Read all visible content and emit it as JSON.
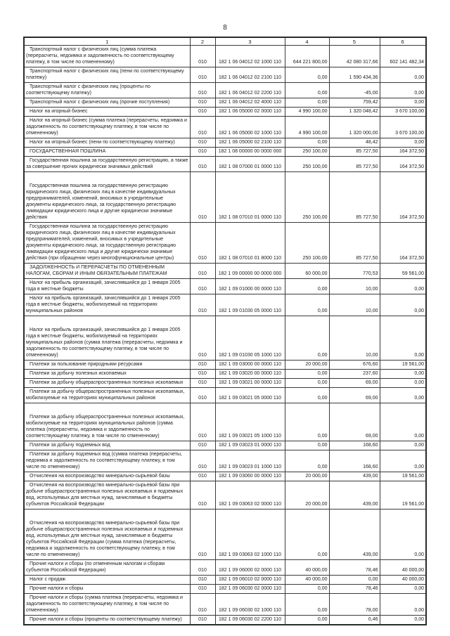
{
  "page": {
    "number": "8"
  },
  "table": {
    "headers": [
      "1",
      "2",
      "3",
      "4",
      "5",
      "6"
    ],
    "rows": [
      {
        "name": "Транспортный налог с физических лиц (сумма платежа (перерасчеты, недоимка и задолженность по соответствующему платежу, в том числе по отмененному)",
        "line": "010",
        "kbk": "182 1 06 04012 02 1000 110",
        "c4": "644 221 800,00",
        "c5": "42 080 317,66",
        "c6": "602 141 482,34"
      },
      {
        "name": "Транспортный налог с физических лиц (пени по соответствующему платежу)",
        "line": "010",
        "kbk": "182 1 06 04012 02 2100 110",
        "c4": "0,00",
        "c5": "1 590 434,36",
        "c6": "0,00"
      },
      {
        "name": "Транспортный налог с физических лиц (проценты по соответствующему платежу)",
        "line": "010",
        "kbk": "182 1 06 04012 02 2200 110",
        "c4": "0,00",
        "c5": "-45,00",
        "c6": "0,00"
      },
      {
        "name": "Транспортный налог с физических лиц (прочие поступления)",
        "line": "010",
        "kbk": "182 1 06 04012 02 4000 110",
        "c4": "0,00",
        "c5": "759,42",
        "c6": "0,00"
      },
      {
        "name": "Налог на игорный бизнес",
        "line": "010",
        "kbk": "182 1 06 05000 02 0000 110",
        "c4": "4 990 100,00",
        "c5": "1 320 048,42",
        "c6": "3 670 100,00"
      },
      {
        "name": "Налог на игорный бизнес (сумма платежа (перерасчеты, недоимка и задолженность по соответствующему платежу, в том числе по отмененному)",
        "line": "010",
        "kbk": "182 1 06 05000 02 1000 110",
        "c4": "4 990 100,00",
        "c5": "1 320 000,00",
        "c6": "3 670 100,00"
      },
      {
        "name": "Налог на игорный бизнес (пени по соответствующему платежу)",
        "line": "010",
        "kbk": "182 1 06 05000 02 2100 110",
        "c4": "0,00",
        "c5": "48,42",
        "c6": "0,00"
      },
      {
        "name": "ГОСУДАРСТВЕННАЯ ПОШЛИНА",
        "line": "010",
        "kbk": "182 1 08 00000 00 0000 000",
        "c4": "250 100,00",
        "c5": "85 727,50",
        "c6": "164 372,50"
      },
      {
        "name": "Государственная пошлина за государственную регистрацию, а также за совершение прочих юридически значимых действий",
        "line": "010",
        "kbk": "182 1 08 07000 01 0000 110",
        "c4": "250 100,00",
        "c5": "85 727,50",
        "c6": "164 372,50"
      },
      {
        "name": "Государственная пошлина за государственную регистрацию юридического лица, физических лиц в качестве индивидуальных предпринимателей, изменений, вносимых в учредительные документы юридического лица, за государственную регистрацию ликвидации юридического лица и другие юридически значимые действия",
        "line": "010",
        "kbk": "182 1 08 07010 01 0000 110",
        "c4": "250 100,00",
        "c5": "85 727,50",
        "c6": "164 372,50"
      },
      {
        "name": "Государственная пошлина за государственную регистрацию юридического лица, физических лиц в качестве индивидуальных предпринимателей, изменений, вносимых в учредительные документы юридического лица, за государственную регистрацию ликвидации юридического лица и другие юридически значимые действия (при обращении через многофункциональные центры)",
        "line": "010",
        "kbk": "182 1 08 07010 01 8000 110",
        "c4": "250 100,00",
        "c5": "85 727,50",
        "c6": "164 372,50"
      },
      {
        "name": "ЗАДОЛЖЕННОСТЬ И ПЕРЕРАСЧЕТЫ ПО ОТМЕНЕННЫМ НАЛОГАМ, СБОРАМ И ИНЫМ ОБЯЗАТЕЛЬНЫМ ПЛАТЕЖАМ",
        "line": "010",
        "kbk": "182 1 09 00000 00 0000 000",
        "c4": "60 000,00",
        "c5": "770,53",
        "c6": "59 561,00"
      },
      {
        "name": "Налог на прибыль организаций, зачислявшийся до 1 января 2005 года в местные бюджеты",
        "line": "010",
        "kbk": "182 1 09 01000 00 0000 110",
        "c4": "0,00",
        "c5": "10,00",
        "c6": "0,00"
      },
      {
        "name": "Налог на прибыль организаций, зачислявшийся до 1 января 2005 года в местные бюджеты, мобилизуемый на территориях муниципальных районов",
        "line": "010",
        "kbk": "182 1 09 01030 05 0000 110",
        "c4": "0,00",
        "c5": "10,00",
        "c6": "0,00"
      },
      {
        "name": "Налог на прибыль организаций, зачислявшийся до 1 января 2005 года в местные бюджеты, мобилизуемый на территориях муниципальных районов (сумма платежа (перерасчеты, недоимка и задолженность по соответствующему платежу, в том числе по отмененному)",
        "line": "010",
        "kbk": "182 1 09 01030 05 1000 110",
        "c4": "0,00",
        "c5": "10,00",
        "c6": "0,00"
      },
      {
        "name": "Платежи за пользование природными ресурсами",
        "line": "010",
        "kbk": "182 1 09 03000 00 0000 110",
        "c4": "20 000,00",
        "c5": "676,60",
        "c6": "19 561,00"
      },
      {
        "name": "Платежи за добычу полезных ископаемых",
        "line": "010",
        "kbk": "182 1 09 03020 00 0000 110",
        "c4": "0,00",
        "c5": "237,60",
        "c6": "0,00"
      },
      {
        "name": "Платежи за добычу общераспространенных полезных ископаемых",
        "line": "010",
        "kbk": "182 1 09 03021 00 0000 110",
        "c4": "0,00",
        "c5": "69,00",
        "c6": "0,00"
      },
      {
        "name": "Платежи за добычу общераспространенных полезных ископаемых, мобилизуемые на территориях муниципальных районов",
        "line": "010",
        "kbk": "182 1 09 03021 05 0000 110",
        "c4": "0,00",
        "c5": "69,00",
        "c6": "0,00"
      },
      {
        "name": "Платежи за добычу общераспространенных полезных ископаемых, мобилизуемые на территориях муниципальных районов (сумма платежа (перерасчеты, недоимка и задолженность по соответствующему платежу, в том числе по отмененному)",
        "line": "010",
        "kbk": "182 1 09 03021 05 1000 110",
        "c4": "0,00",
        "c5": "69,00",
        "c6": "0,00"
      },
      {
        "name": "Платежи за добычу подземных вод",
        "line": "010",
        "kbk": "182 1 09 03023 01 0000 110",
        "c4": "0,00",
        "c5": "168,60",
        "c6": "0,00"
      },
      {
        "name": "Платежи за добычу подземных вод (сумма платежа (перерасчеты, недоимка и задолженность по соответствующему платежу, в том числе по отмененному)",
        "line": "010",
        "kbk": "182 1 09 03023 01 1000 110",
        "c4": "0,00",
        "c5": "168,60",
        "c6": "0,00"
      },
      {
        "name": "Отчисления на воспроизводство минерально-сырьевой базы",
        "line": "010",
        "kbk": "182 1 09 03060 00 0000 110",
        "c4": "20 000,00",
        "c5": "439,00",
        "c6": "19 561,00"
      },
      {
        "name": "Отчисления на воспроизводство минерально-сырьевой базы при добыче общераспространенных полезных ископаемых и подземных вод, используемых для местных нужд, зачисляемые в бюджеты субъектов Российской Федерации",
        "line": "010",
        "kbk": "182 1 09 03063 02 0000 110",
        "c4": "20 000,00",
        "c5": "439,00",
        "c6": "19 561,00"
      },
      {
        "name": "Отчисления на воспроизводство минерально-сырьевой базы при добыче общераспространенных полезных ископаемых и подземных вод, используемых для местных нужд, зачисляемые в бюджеты субъектов Российской Федерации (сумма платежа (перерасчеты, недоимка и задолженность по соответствующему платежу, в том числе по отмененному)",
        "line": "010",
        "kbk": "182 1 09 03063 02 1000 110",
        "c4": "0,00",
        "c5": "439,00",
        "c6": "0,00"
      },
      {
        "name": "Прочие налоги и сборы (по отмененным налогам и сборам субъектов Российской Федерации)",
        "line": "010",
        "kbk": "182 1 09 06000 02 0000 110",
        "c4": "40 000,00",
        "c5": "78,46",
        "c6": "40 000,00"
      },
      {
        "name": "Налог с продаж",
        "line": "010",
        "kbk": "182 1 09 06010 02 0000 110",
        "c4": "40 000,00",
        "c5": "0,00",
        "c6": "40 000,00"
      },
      {
        "name": "Прочие налоги и сборы",
        "line": "010",
        "kbk": "182 1 09 06030 02 0000 110",
        "c4": "0,00",
        "c5": "78,46",
        "c6": "0,00"
      },
      {
        "name": "Прочие налоги и сборы (сумма платежа (перерасчеты, недоимка и задолженность по соответствующему платежу, в том числе по отмененному)",
        "line": "010",
        "kbk": "182 1 09 06030 02 1000 110",
        "c4": "0,00",
        "c5": "78,00",
        "c6": "0,00"
      },
      {
        "name": "Прочие налоги и сборы (проценты по соответствующему платежу)",
        "line": "010",
        "kbk": "182 1 09 06030 02 2200 110",
        "c4": "0,00",
        "c5": "0,46",
        "c6": "0,00"
      }
    ]
  }
}
